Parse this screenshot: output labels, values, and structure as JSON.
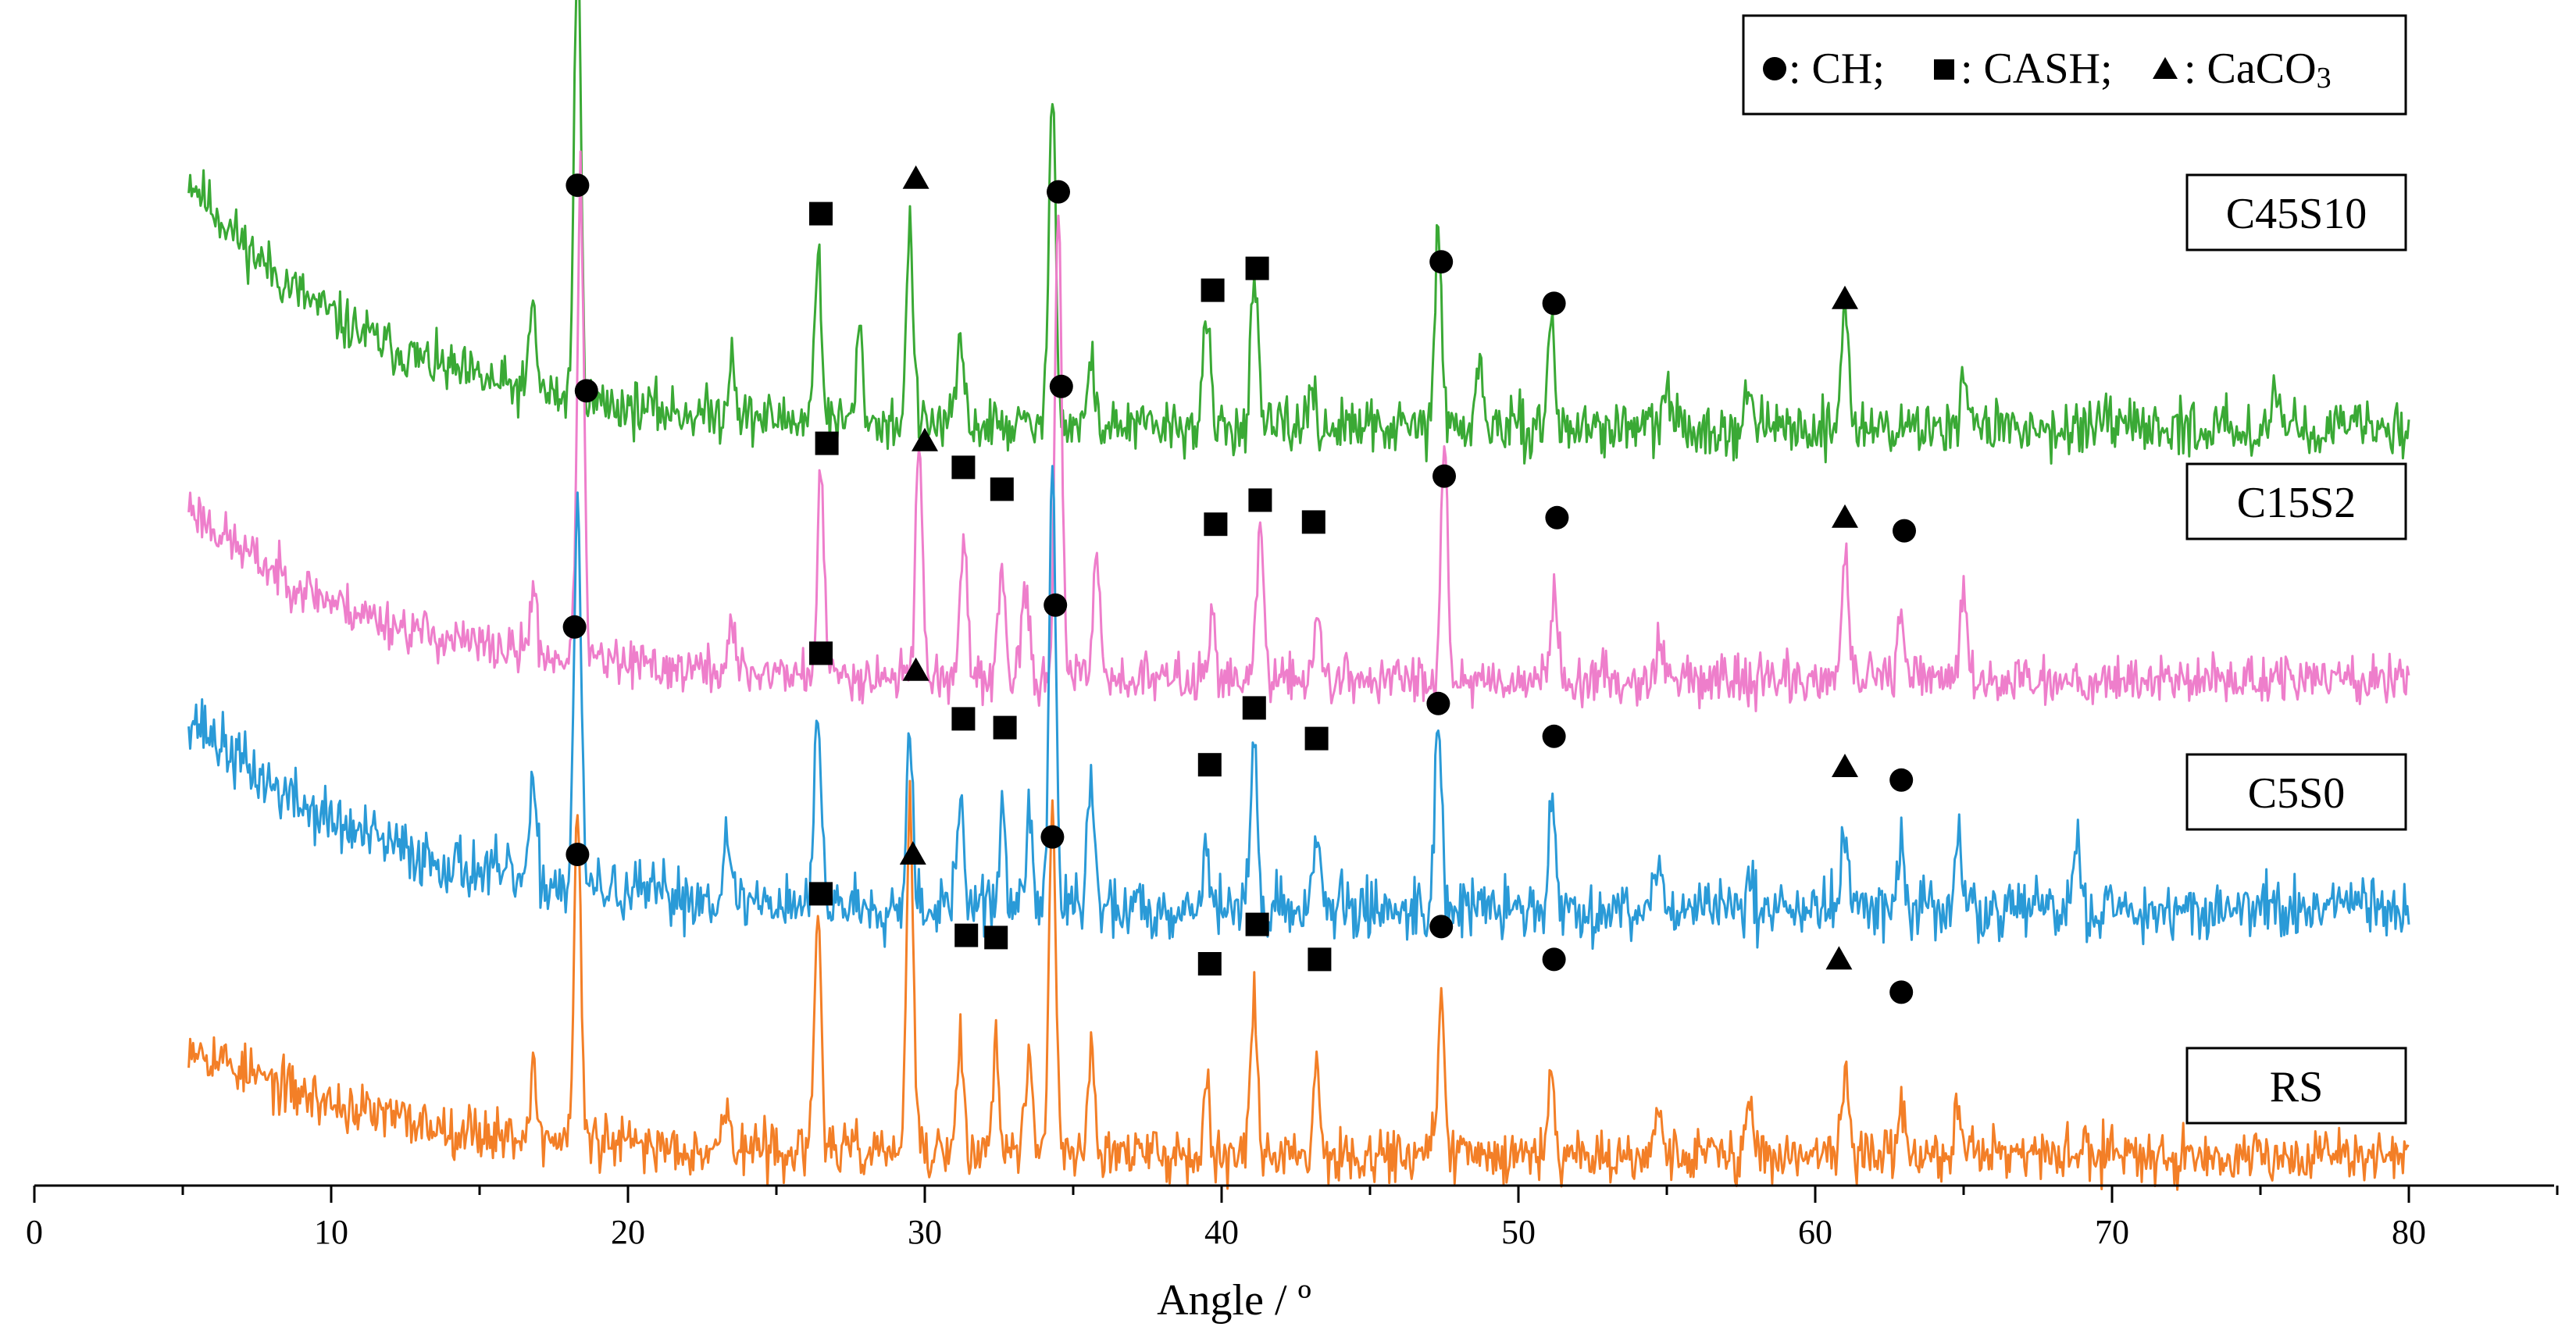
{
  "chart_data": {
    "type": "line",
    "title": "",
    "xlabel": "Angle  / º",
    "ylabel": "",
    "xlim": [
      0,
      85
    ],
    "xticks": [
      0,
      10,
      20,
      30,
      40,
      50,
      60,
      70,
      80
    ],
    "grid": false,
    "legend": {
      "position": "top-right",
      "entries": [
        {
          "symbol": "circle",
          "label": ": CH;"
        },
        {
          "symbol": "square",
          "label": ": CASH;"
        },
        {
          "symbol": "triangle",
          "label": ": CaCO",
          "subscript": "3"
        }
      ]
    },
    "series": [
      {
        "name": "C45S10",
        "color": "#3aa935",
        "seed": 11,
        "start": 5.2,
        "end": 80,
        "baseline": 34.0,
        "tail_amp": 11.5,
        "tail_decay": 6.0,
        "noise": 1.2,
        "peaks": [
          [
            16.8,
            4
          ],
          [
            18.3,
            21
          ],
          [
            23.5,
            3
          ],
          [
            26.4,
            8
          ],
          [
            27.8,
            4
          ],
          [
            29.5,
            9
          ],
          [
            31.2,
            4
          ],
          [
            34.3,
            16
          ],
          [
            35.6,
            3
          ],
          [
            39.5,
            5
          ],
          [
            41.1,
            7
          ],
          [
            43.0,
            2
          ],
          [
            47.3,
            9
          ],
          [
            48.7,
            3
          ],
          [
            51.1,
            5
          ],
          [
            55.0,
            2
          ],
          [
            57.8,
            2
          ],
          [
            61.0,
            6
          ],
          [
            65.0,
            3
          ],
          [
            75.5,
            2
          ]
        ],
        "markers": [
          [
            "circle",
            18.3,
            45.1
          ],
          [
            "square",
            26.5,
            43.8
          ],
          [
            "triangle",
            29.7,
            45.4
          ],
          [
            "circle",
            34.5,
            44.8
          ],
          [
            "square",
            39.7,
            40.3
          ],
          [
            "square",
            41.2,
            41.3
          ],
          [
            "circle",
            47.4,
            41.6
          ],
          [
            "circle",
            51.2,
            39.7
          ],
          [
            "triangle",
            61.0,
            39.9
          ]
        ]
      },
      {
        "name": "C15S2",
        "color": "#ee7ecb",
        "seed": 23,
        "start": 5.2,
        "end": 80,
        "baseline": 22.5,
        "tail_amp": 8.0,
        "tail_decay": 6.0,
        "noise": 1.1,
        "peaks": [
          [
            16.8,
            3
          ],
          [
            18.4,
            22
          ],
          [
            23.5,
            2
          ],
          [
            26.5,
            9
          ],
          [
            29.8,
            11
          ],
          [
            31.3,
            6
          ],
          [
            32.6,
            5
          ],
          [
            33.4,
            4
          ],
          [
            34.5,
            22
          ],
          [
            35.8,
            6
          ],
          [
            39.7,
            3
          ],
          [
            41.3,
            7
          ],
          [
            43.2,
            3
          ],
          [
            47.5,
            11
          ],
          [
            51.2,
            4
          ],
          [
            54.8,
            2
          ],
          [
            61.0,
            6
          ],
          [
            62.9,
            3
          ],
          [
            65.0,
            4
          ]
        ],
        "markers": [
          [
            "circle",
            18.6,
            35.7
          ],
          [
            "square",
            26.7,
            33.3
          ],
          [
            "triangle",
            30.0,
            33.4
          ],
          [
            "square",
            31.3,
            32.2
          ],
          [
            "square",
            32.6,
            31.2
          ],
          [
            "circle",
            34.6,
            35.9
          ],
          [
            "square",
            39.8,
            29.6
          ],
          [
            "square",
            41.3,
            30.7
          ],
          [
            "square",
            43.1,
            29.7
          ],
          [
            "circle",
            47.5,
            31.8
          ],
          [
            "circle",
            51.3,
            29.9
          ],
          [
            "triangle",
            61.0,
            29.9
          ],
          [
            "circle",
            63.0,
            29.3
          ]
        ]
      },
      {
        "name": "C5S0",
        "color": "#2a9ad7",
        "seed": 37,
        "start": 5.2,
        "end": 80,
        "baseline": 12.0,
        "tail_amp": 9.0,
        "tail_decay": 6.0,
        "noise": 1.4,
        "peaks": [
          [
            16.8,
            4
          ],
          [
            18.3,
            18
          ],
          [
            23.3,
            3
          ],
          [
            26.4,
            9
          ],
          [
            29.5,
            8
          ],
          [
            31.2,
            5
          ],
          [
            32.6,
            4
          ],
          [
            33.5,
            4
          ],
          [
            34.3,
            20
          ],
          [
            35.6,
            6
          ],
          [
            39.5,
            3
          ],
          [
            41.1,
            8
          ],
          [
            43.2,
            4
          ],
          [
            47.3,
            9
          ],
          [
            51.1,
            5
          ],
          [
            54.7,
            3
          ],
          [
            57.8,
            2
          ],
          [
            61.0,
            4
          ],
          [
            62.9,
            3
          ],
          [
            64.8,
            3
          ],
          [
            68.8,
            3
          ]
        ],
        "markers": [
          [
            "circle",
            18.2,
            24.9
          ],
          [
            "square",
            26.5,
            23.7
          ],
          [
            "triangle",
            29.7,
            22.9
          ],
          [
            "square",
            31.3,
            20.7
          ],
          [
            "square",
            32.7,
            20.3
          ],
          [
            "circle",
            34.4,
            25.9
          ],
          [
            "square",
            39.6,
            18.6
          ],
          [
            "square",
            41.1,
            21.2
          ],
          [
            "square",
            43.2,
            19.8
          ],
          [
            "circle",
            47.3,
            21.4
          ],
          [
            "circle",
            51.2,
            19.9
          ],
          [
            "triangle",
            61.0,
            18.5
          ],
          [
            "circle",
            62.9,
            17.9
          ]
        ]
      },
      {
        "name": "RS",
        "color": "#f37f27",
        "seed": 53,
        "start": 5.2,
        "end": 80,
        "baseline": 0.8,
        "tail_amp": 5.2,
        "tail_decay": 6.0,
        "noise": 1.2,
        "peaks": [
          [
            16.8,
            3
          ],
          [
            18.3,
            15
          ],
          [
            23.3,
            2
          ],
          [
            26.4,
            11
          ],
          [
            29.5,
            16
          ],
          [
            31.2,
            5
          ],
          [
            32.4,
            5
          ],
          [
            33.5,
            4
          ],
          [
            34.3,
            16
          ],
          [
            35.6,
            5
          ],
          [
            39.5,
            3
          ],
          [
            41.1,
            7
          ],
          [
            43.2,
            4
          ],
          [
            47.4,
            7
          ],
          [
            51.1,
            4
          ],
          [
            54.7,
            2
          ],
          [
            57.8,
            2
          ],
          [
            61.0,
            4
          ],
          [
            62.9,
            2
          ],
          [
            64.8,
            2
          ]
        ],
        "markers": [
          [
            "circle",
            18.3,
            14.5
          ],
          [
            "square",
            26.5,
            12.7
          ],
          [
            "triangle",
            29.6,
            14.5
          ],
          [
            "square",
            31.4,
            10.8
          ],
          [
            "square",
            32.4,
            10.7
          ],
          [
            "circle",
            34.3,
            15.3
          ],
          [
            "square",
            39.6,
            9.5
          ],
          [
            "square",
            41.2,
            11.3
          ],
          [
            "square",
            43.3,
            9.7
          ],
          [
            "circle",
            47.4,
            11.2
          ],
          [
            "circle",
            51.2,
            9.7
          ],
          [
            "triangle",
            60.8,
            9.7
          ],
          [
            "circle",
            62.9,
            8.2
          ]
        ]
      }
    ]
  }
}
